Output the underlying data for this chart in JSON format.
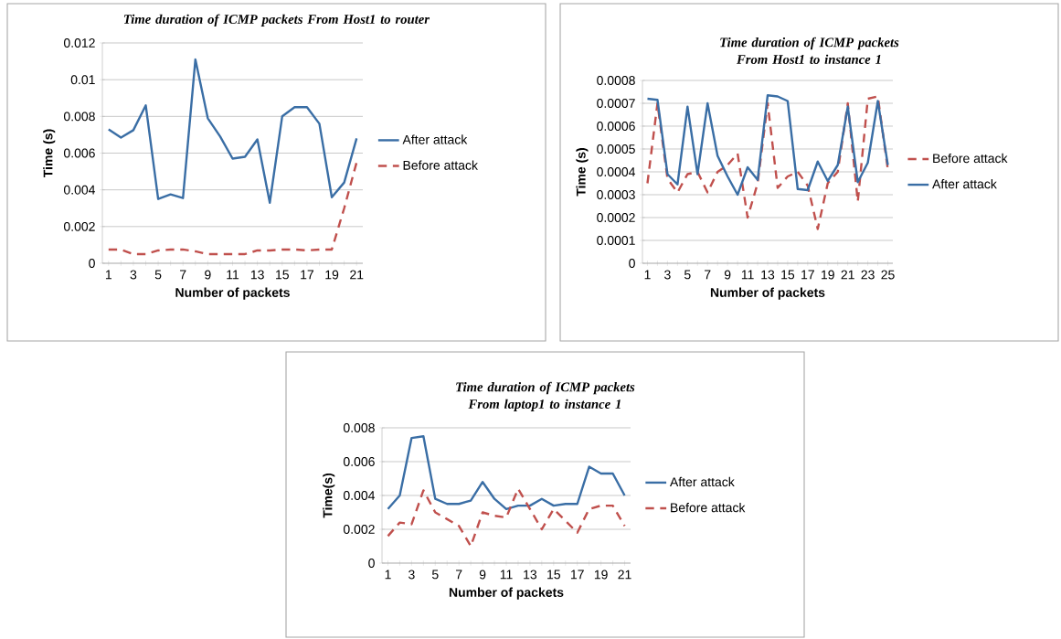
{
  "chart_data": [
    {
      "type": "line",
      "title": "Time duration of ICMP packets From Host1 to router",
      "xlabel": "Number of packets",
      "ylabel": "Time (s)",
      "categories": [
        "1",
        null,
        "3",
        null,
        "5",
        null,
        "7",
        null,
        "9",
        null,
        "11",
        null,
        "13",
        null,
        "15",
        null,
        "17",
        null,
        "19",
        null,
        "21"
      ],
      "ylim": [
        0,
        0.012
      ],
      "yticks": [
        0,
        0.002,
        0.004,
        0.006,
        0.008,
        0.01,
        0.012
      ],
      "grid": "y",
      "legend": "right",
      "series": [
        {
          "name": "After attack",
          "color": "#3a6ea5",
          "line_style": "solid",
          "values": [
            0.0073,
            0.00685,
            0.00725,
            0.0086,
            0.0035,
            0.00375,
            0.00355,
            0.0111,
            0.0079,
            0.0069,
            0.0057,
            0.0058,
            0.00675,
            0.0033,
            0.008,
            0.0085,
            0.0085,
            0.0076,
            0.0036,
            0.0044,
            0.0068
          ]
        },
        {
          "name": "Before attack",
          "color": "#c0504d",
          "line_style": "dashed",
          "values": [
            0.00075,
            0.00075,
            0.0005,
            0.0005,
            0.0007,
            0.00075,
            0.00075,
            0.00065,
            0.0005,
            0.0005,
            0.0005,
            0.0005,
            0.0007,
            0.0007,
            0.00075,
            0.00075,
            0.0007,
            0.00075,
            0.00075,
            0.003,
            0.0055
          ]
        }
      ]
    },
    {
      "type": "line",
      "title": "Time duration of ICMP packets From Host1 to instance 1",
      "xlabel": "Number of packets",
      "ylabel": "Time (s)",
      "categories": [
        "1",
        null,
        "3",
        null,
        "5",
        null,
        "7",
        null,
        "9",
        null,
        "11",
        null,
        "13",
        null,
        "15",
        null,
        "17",
        null,
        "19",
        null,
        "21",
        null,
        "23",
        null,
        "25"
      ],
      "ylim": [
        0,
        0.0008
      ],
      "yticks": [
        0,
        0.0001,
        0.0002,
        0.0003,
        0.0004,
        0.0005,
        0.0006,
        0.0007,
        0.0008
      ],
      "grid": "y",
      "legend": "right",
      "series": [
        {
          "name": "Before attack",
          "color": "#c0504d",
          "line_style": "dashed",
          "values": [
            0.00035,
            0.0007,
            0.00037,
            0.00031,
            0.00039,
            0.0004,
            0.00031,
            0.0004,
            0.00043,
            0.00048,
            0.0002,
            0.00035,
            0.0007,
            0.00033,
            0.00038,
            0.0004,
            0.00034,
            0.00015,
            0.00035,
            0.0004,
            0.0007,
            0.00027,
            0.00072,
            0.00073,
            0.00041
          ]
        },
        {
          "name": "After attack",
          "color": "#3a6ea5",
          "line_style": "solid",
          "values": [
            0.00072,
            0.000715,
            0.00039,
            0.000345,
            0.000685,
            0.00039,
            0.0007,
            0.00047,
            0.00038,
            0.0003,
            0.00042,
            0.000365,
            0.000735,
            0.00073,
            0.00071,
            0.000325,
            0.00032,
            0.000445,
            0.00036,
            0.00043,
            0.000685,
            0.000355,
            0.00044,
            0.00071,
            0.00043
          ]
        }
      ]
    },
    {
      "type": "line",
      "title": "Time duration of ICMP packets From laptop1 to instance 1",
      "xlabel": "Number of packets",
      "ylabel": "Time(s)",
      "categories": [
        "1",
        null,
        "3",
        null,
        "5",
        null,
        "7",
        null,
        "9",
        null,
        "11",
        null,
        "13",
        null,
        "15",
        null,
        "17",
        null,
        "19",
        null,
        "21"
      ],
      "ylim": [
        0,
        0.008
      ],
      "yticks": [
        0,
        0.002,
        0.004,
        0.006,
        0.008
      ],
      "grid": "y",
      "legend": "right",
      "series": [
        {
          "name": "After attack",
          "color": "#3a6ea5",
          "line_style": "solid",
          "values": [
            0.0032,
            0.004,
            0.0074,
            0.0075,
            0.0038,
            0.0035,
            0.0035,
            0.0037,
            0.0048,
            0.0038,
            0.0032,
            0.0034,
            0.0034,
            0.0038,
            0.0034,
            0.0035,
            0.0035,
            0.0057,
            0.0053,
            0.0053,
            0.004
          ]
        },
        {
          "name": "Before attack",
          "color": "#c0504d",
          "line_style": "dashed",
          "values": [
            0.0016,
            0.0024,
            0.0023,
            0.0043,
            0.003,
            0.0026,
            0.0022,
            0.001,
            0.003,
            0.0028,
            0.0027,
            0.0044,
            0.0032,
            0.002,
            0.0032,
            0.0025,
            0.0018,
            0.0032,
            0.0034,
            0.0034,
            0.0022
          ]
        }
      ]
    }
  ]
}
